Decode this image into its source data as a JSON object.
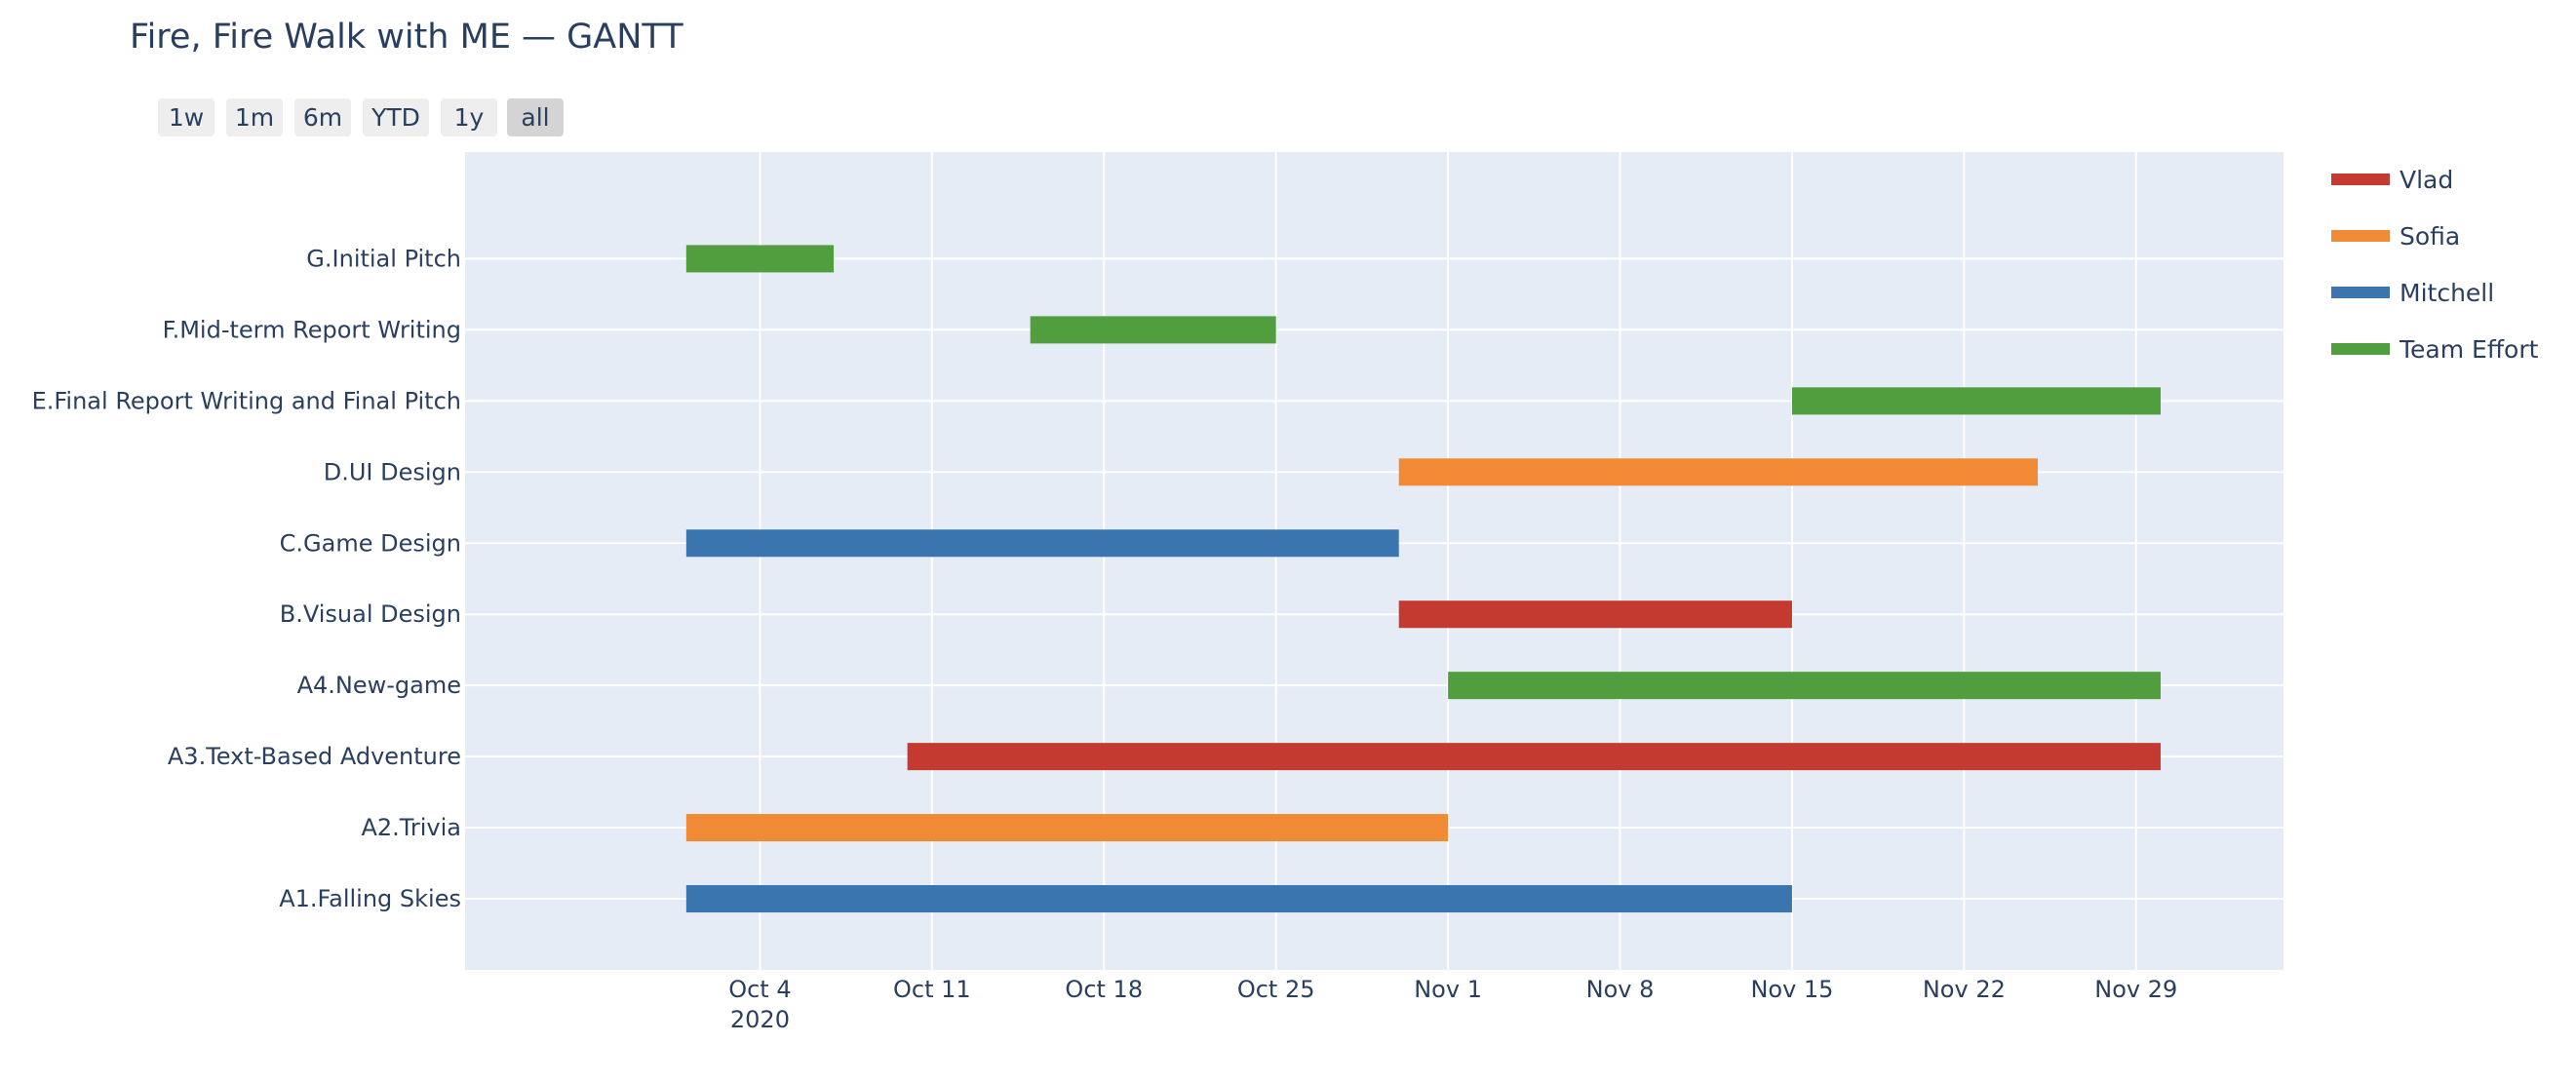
{
  "title": "Fire, Fire Walk with ME — GANTT",
  "range_selector": {
    "buttons": [
      "1w",
      "1m",
      "6m",
      "YTD",
      "1y",
      "all"
    ],
    "active": "all"
  },
  "chart_data": {
    "type": "gantt",
    "title": "Fire, Fire Walk with ME — GANTT",
    "x_axis": {
      "type": "date",
      "range": [
        "2020-09-22",
        "2020-12-05"
      ],
      "ticks": [
        {
          "date": "2020-10-04",
          "label": "Oct 4",
          "sublabel": "2020"
        },
        {
          "date": "2020-10-11",
          "label": "Oct 11"
        },
        {
          "date": "2020-10-18",
          "label": "Oct 18"
        },
        {
          "date": "2020-10-25",
          "label": "Oct 25"
        },
        {
          "date": "2020-11-01",
          "label": "Nov 1"
        },
        {
          "date": "2020-11-08",
          "label": "Nov 8"
        },
        {
          "date": "2020-11-15",
          "label": "Nov 15"
        },
        {
          "date": "2020-11-22",
          "label": "Nov 22"
        },
        {
          "date": "2020-11-29",
          "label": "Nov 29"
        }
      ]
    },
    "categories": [
      "A1.Falling Skies",
      "A2.Trivia",
      "A3.Text-Based Adventure",
      "A4.New-game",
      "B.Visual Design",
      "C.Game Design",
      "D.UI Design",
      "E.Final Report Writing and Final Pitch",
      "F.Mid-term Report Writing",
      "G.Initial Pitch"
    ],
    "legend": [
      {
        "name": "Vlad",
        "color": "#c43a31"
      },
      {
        "name": "Sofia",
        "color": "#f08a35"
      },
      {
        "name": "Mitchell",
        "color": "#3a75b0"
      },
      {
        "name": "Team Effort",
        "color": "#519e3e"
      }
    ],
    "legend_position": "right",
    "grid": true,
    "tasks": [
      {
        "task": "A1.Falling Skies",
        "start": "2020-10-01",
        "finish": "2020-11-15",
        "resource": "Mitchell"
      },
      {
        "task": "A2.Trivia",
        "start": "2020-10-01",
        "finish": "2020-11-01",
        "resource": "Sofia"
      },
      {
        "task": "A3.Text-Based Adventure",
        "start": "2020-10-10",
        "finish": "2020-11-30",
        "resource": "Vlad"
      },
      {
        "task": "A4.New-game",
        "start": "2020-11-01",
        "finish": "2020-11-30",
        "resource": "Team Effort"
      },
      {
        "task": "B.Visual Design",
        "start": "2020-10-30",
        "finish": "2020-11-15",
        "resource": "Vlad"
      },
      {
        "task": "C.Game Design",
        "start": "2020-10-01",
        "finish": "2020-10-30",
        "resource": "Mitchell"
      },
      {
        "task": "D.UI Design",
        "start": "2020-10-30",
        "finish": "2020-11-25",
        "resource": "Sofia"
      },
      {
        "task": "E.Final Report Writing and Final Pitch",
        "start": "2020-11-15",
        "finish": "2020-11-30",
        "resource": "Team Effort"
      },
      {
        "task": "F.Mid-term Report Writing",
        "start": "2020-10-15",
        "finish": "2020-10-25",
        "resource": "Team Effort"
      },
      {
        "task": "G.Initial Pitch",
        "start": "2020-10-01",
        "finish": "2020-10-07",
        "resource": "Team Effort"
      }
    ]
  }
}
